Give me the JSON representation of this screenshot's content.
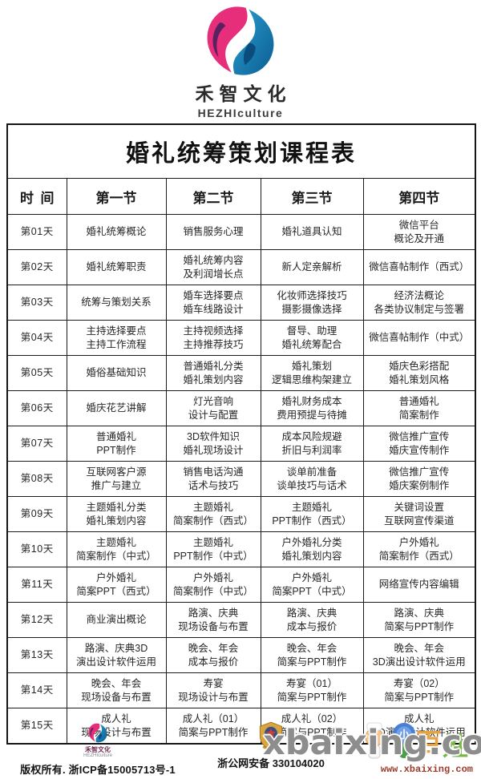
{
  "brand": {
    "name": "禾智文化",
    "name_en": "HEZHIculture"
  },
  "colors": {
    "logo_pink": "#e62e7b",
    "logo_purple": "#5a2160",
    "logo_blue_light": "#2a9fd0",
    "logo_blue_dark": "#0c5d93",
    "border_black": "#1b1b1b",
    "watermark_gray": "#7d7d7d",
    "url_red": "#9c3a2b",
    "badge_gold": "#d9a441",
    "mascot_blue": "#4a7fd4",
    "mascot_orange": "#e8a33d",
    "mascot_green": "#7ab648"
  },
  "table": {
    "title": "婚礼统筹策划课程表",
    "headers": [
      "时  间",
      "第一节",
      "第二节",
      "第三节",
      "第四节"
    ],
    "rows": [
      {
        "day": "第01天",
        "sessions": [
          [
            "婚礼统筹概论"
          ],
          [
            "销售服务心理"
          ],
          [
            "婚礼道具认知"
          ],
          [
            "微信平台",
            "概论及开通"
          ]
        ]
      },
      {
        "day": "第02天",
        "sessions": [
          [
            "婚礼统筹职责"
          ],
          [
            "婚礼统筹内容",
            "及利润增长点"
          ],
          [
            "新人定亲解析"
          ],
          [
            "微信喜帖制作（西式）"
          ]
        ]
      },
      {
        "day": "第03天",
        "sessions": [
          [
            "统筹与策划关系"
          ],
          [
            "婚车选择要点",
            "婚车线路设计"
          ],
          [
            "化妆师选择技巧",
            "摄影摄像选择"
          ],
          [
            "经济法概论",
            "各类协议制定与签署"
          ]
        ]
      },
      {
        "day": "第04天",
        "sessions": [
          [
            "主持选择要点",
            "主持工作流程"
          ],
          [
            "主持视频选择",
            "主持推荐技巧"
          ],
          [
            "督导、助理",
            "婚礼统筹配合"
          ],
          [
            "微信喜帖制作（中式）"
          ]
        ]
      },
      {
        "day": "第05天",
        "sessions": [
          [
            "婚俗基础知识"
          ],
          [
            "普通婚礼分类",
            "婚礼策划内容"
          ],
          [
            "婚礼策划",
            "逻辑思维构架建立"
          ],
          [
            "婚庆色彩搭配",
            "婚礼策划风格"
          ]
        ]
      },
      {
        "day": "第06天",
        "sessions": [
          [
            "婚庆花艺讲解"
          ],
          [
            "灯光音响",
            "设计与配置"
          ],
          [
            "婚礼财务成本",
            "费用预提与待摊"
          ],
          [
            "普通婚礼",
            "简案制作"
          ]
        ]
      },
      {
        "day": "第07天",
        "sessions": [
          [
            "普通婚礼",
            "PPT制作"
          ],
          [
            "3D软件知识",
            "婚礼现场设计"
          ],
          [
            "成本风险规避",
            "折旧与利润率"
          ],
          [
            "微信推广宣传",
            "婚庆宣传制作"
          ]
        ]
      },
      {
        "day": "第08天",
        "sessions": [
          [
            "互联网客户源",
            "推广与建立"
          ],
          [
            "销售电话沟通",
            "话术与技巧"
          ],
          [
            "谈单前准备",
            "谈单技巧与话术"
          ],
          [
            "微信推广宣传",
            "婚庆案例制作"
          ]
        ]
      },
      {
        "day": "第09天",
        "sessions": [
          [
            "主题婚礼分类",
            "婚礼策划内容"
          ],
          [
            "主题婚礼",
            "简案制作（西式）"
          ],
          [
            "主题婚礼",
            "PPT制作（西式）"
          ],
          [
            "关键词设置",
            "互联网宣传渠道"
          ]
        ]
      },
      {
        "day": "第10天",
        "sessions": [
          [
            "主题婚礼",
            "简案制作（中式）"
          ],
          [
            "主题婚礼",
            "PPT制作（中式）"
          ],
          [
            "户外婚礼分类",
            "婚礼策划内容"
          ],
          [
            "户外婚礼",
            "简案制作（西式）"
          ]
        ]
      },
      {
        "day": "第11天",
        "sessions": [
          [
            "户外婚礼",
            "简案PPT（西式）"
          ],
          [
            "户外婚礼",
            "简案制作（中式）"
          ],
          [
            "户外婚礼",
            "简案PPT（中式）"
          ],
          [
            "网络宣传内容编辑"
          ]
        ]
      },
      {
        "day": "第12天",
        "sessions": [
          [
            "商业演出概论"
          ],
          [
            "路演、庆典",
            "现场设备与布置"
          ],
          [
            "路演、庆典",
            "成本与报价"
          ],
          [
            "路演、庆典",
            "简案与PPT制作"
          ]
        ]
      },
      {
        "day": "第13天",
        "sessions": [
          [
            "路演、庆典3D",
            "演出设计软件运用"
          ],
          [
            "晚会、年会",
            "成本与报价"
          ],
          [
            "晚会、年会",
            "简案与PPT制作"
          ],
          [
            "晚会、年会",
            "3D演出设计软件运用"
          ]
        ]
      },
      {
        "day": "第14天",
        "sessions": [
          [
            "晚会、年会",
            "现场设备与布置"
          ],
          [
            "寿宴",
            "现场设计与布置"
          ],
          [
            "寿宴（01）",
            "简案与PPT制作"
          ],
          [
            "寿宴（02）",
            "简案与PPT制作"
          ]
        ]
      },
      {
        "day": "第15天",
        "sessions": [
          [
            "成人礼",
            "现场设计与布置"
          ],
          [
            "成人礼（01）",
            "简案与PPT制作"
          ],
          [
            "成人礼（02）",
            "简案与PPT制作"
          ],
          [
            "成人礼",
            "3D演出设计软件运用"
          ]
        ]
      }
    ]
  },
  "footer": {
    "brand_name": "禾智文化",
    "brand_name_en": "HEZHIculture",
    "copyright": "版权所有. 浙ICP备15005713号-1",
    "security_label": "浙公网安备",
    "security_number": "330104020"
  },
  "watermark": {
    "main": "xbaixing.com",
    "url": "www.xbaixing.com",
    "mascot_chars": {
      "badge": "小",
      "char1": "百",
      "char2": "姓"
    }
  }
}
